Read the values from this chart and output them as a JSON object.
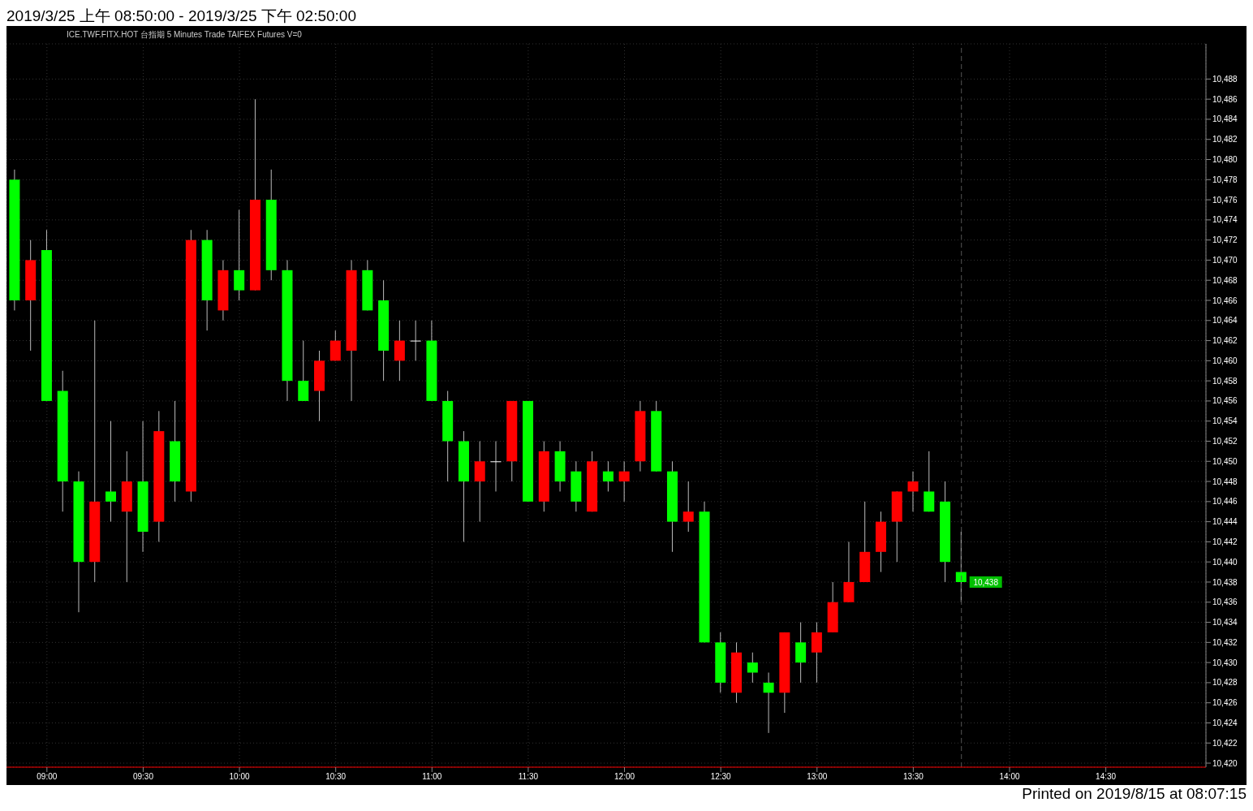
{
  "chart_data": {
    "type": "candlestick",
    "title": "2019/3/25 上午 08:50:00 - 2019/3/25 下午 02:50:00",
    "subtitle": "ICE.TWF.FITX.HOT 台指期 5 Minutes Trade TAIFEX Futures V=0",
    "x": [
      8.8333,
      8.9167,
      9,
      9.0833,
      9.1667,
      9.25,
      9.3333,
      9.4167,
      9.5,
      9.5833,
      9.6667,
      9.75,
      9.8333,
      9.9167,
      10,
      10.0833,
      10.1667,
      10.25,
      10.3333,
      10.4167,
      10.5,
      10.5833,
      10.6667,
      10.75,
      10.8333,
      10.9167,
      11,
      11.0833,
      11.1667,
      11.25,
      11.3333,
      11.4167,
      11.5,
      11.5833,
      11.6667,
      11.75,
      11.8333,
      11.9167,
      12,
      12.0833,
      12.1667,
      12.25,
      12.3333,
      12.4167,
      12.5,
      12.5833,
      12.6667,
      12.75,
      12.8333,
      12.9167,
      13,
      13.0833,
      13.1667,
      13.25,
      13.3333,
      13.4167,
      13.5,
      13.5833,
      13.6667,
      13.75
    ],
    "ohlc": [
      [
        10478,
        10479,
        10465,
        10466
      ],
      [
        10466,
        10472,
        10461,
        10470
      ],
      [
        10471,
        10473,
        10456,
        10456
      ],
      [
        10457,
        10459,
        10445,
        10448
      ],
      [
        10448,
        10449,
        10435,
        10440
      ],
      [
        10440,
        10464,
        10438,
        10446
      ],
      [
        10447,
        10454,
        10444,
        10446
      ],
      [
        10445,
        10451,
        10438,
        10448
      ],
      [
        10448,
        10454,
        10441,
        10443
      ],
      [
        10444,
        10455,
        10442,
        10453
      ],
      [
        10452,
        10456,
        10446,
        10448
      ],
      [
        10447,
        10473,
        10446,
        10472
      ],
      [
        10472,
        10473,
        10463,
        10466
      ],
      [
        10465,
        10470,
        10464,
        10469
      ],
      [
        10469,
        10475,
        10466,
        10467
      ],
      [
        10467,
        10486,
        10467,
        10476
      ],
      [
        10476,
        10479,
        10468,
        10469
      ],
      [
        10469,
        10470,
        10456,
        10458
      ],
      [
        10458,
        10462,
        10456,
        10456
      ],
      [
        10457,
        10461,
        10454,
        10460
      ],
      [
        10460,
        10463,
        10460,
        10462
      ],
      [
        10461,
        10470,
        10456,
        10469
      ],
      [
        10469,
        10470,
        10465,
        10465
      ],
      [
        10466,
        10468,
        10458,
        10461
      ],
      [
        10460,
        10464,
        10458,
        10462
      ],
      [
        10462,
        10464,
        10460,
        10462
      ],
      [
        10462,
        10464,
        10456,
        10456
      ],
      [
        10456,
        10457,
        10448,
        10452
      ],
      [
        10452,
        10453,
        10442,
        10448
      ],
      [
        10448,
        10452,
        10444,
        10450
      ],
      [
        10450,
        10452,
        10447,
        10450
      ],
      [
        10450,
        10456,
        10448,
        10456
      ],
      [
        10456,
        10456,
        10446,
        10446
      ],
      [
        10446,
        10452,
        10445,
        10451
      ],
      [
        10451,
        10452,
        10447,
        10448
      ],
      [
        10449,
        10450,
        10445,
        10446
      ],
      [
        10445,
        10451,
        10445,
        10450
      ],
      [
        10449,
        10450,
        10447,
        10448
      ],
      [
        10448,
        10450,
        10446,
        10449
      ],
      [
        10450,
        10456,
        10449,
        10455
      ],
      [
        10455,
        10456,
        10449,
        10449
      ],
      [
        10449,
        10450,
        10441,
        10444
      ],
      [
        10444,
        10448,
        10443,
        10445
      ],
      [
        10445,
        10446,
        10432,
        10432
      ],
      [
        10432,
        10433,
        10427,
        10428
      ],
      [
        10427,
        10432,
        10426,
        10431
      ],
      [
        10430,
        10431,
        10428,
        10429
      ],
      [
        10428,
        10429,
        10423,
        10427
      ],
      [
        10427,
        10433,
        10425,
        10433
      ],
      [
        10432,
        10434,
        10428,
        10430
      ],
      [
        10431,
        10434,
        10428,
        10433
      ],
      [
        10433,
        10438,
        10433,
        10436
      ],
      [
        10436,
        10442,
        10436,
        10438
      ],
      [
        10438,
        10446,
        10438,
        10441
      ],
      [
        10441,
        10445,
        10439,
        10444
      ],
      [
        10444,
        10447,
        10440,
        10447
      ],
      [
        10447,
        10449,
        10445,
        10448
      ],
      [
        10447,
        10451,
        10445,
        10445
      ],
      [
        10446,
        10448,
        10438,
        10440
      ],
      [
        10439,
        10443,
        10436,
        10438
      ]
    ],
    "colors": [
      "#00ff00",
      "#ff0000",
      "#00ff00",
      "#00ff00",
      "#00ff00",
      "#ff0000",
      "#00ff00",
      "#ff0000",
      "#00ff00",
      "#ff0000",
      "#00ff00",
      "#ff0000",
      "#00ff00",
      "#ff0000",
      "#00ff00",
      "#ff0000",
      "#00ff00",
      "#00ff00",
      "#00ff00",
      "#ff0000",
      "#ff0000",
      "#ff0000",
      "#00ff00",
      "#00ff00",
      "#ff0000",
      "#ffffff",
      "#00ff00",
      "#00ff00",
      "#00ff00",
      "#ff0000",
      "#ffffff",
      "#ff0000",
      "#00ff00",
      "#ff0000",
      "#00ff00",
      "#00ff00",
      "#ff0000",
      "#00ff00",
      "#ff0000",
      "#ff0000",
      "#00ff00",
      "#00ff00",
      "#ff0000",
      "#00ff00",
      "#00ff00",
      "#ff0000",
      "#00ff00",
      "#00ff00",
      "#ff0000",
      "#00ff00",
      "#ff0000",
      "#ff0000",
      "#ff0000",
      "#ff0000",
      "#ff0000",
      "#ff0000",
      "#ff0000",
      "#00ff00",
      "#00ff00",
      "#00ff00"
    ],
    "xlim": [
      8.79,
      15.02
    ],
    "xticks": [
      {
        "value": 9,
        "label": "09:00"
      },
      {
        "value": 9.5,
        "label": "09:30"
      },
      {
        "value": 10,
        "label": "10:00"
      },
      {
        "value": 10.5,
        "label": "10:30"
      },
      {
        "value": 11,
        "label": "11:00"
      },
      {
        "value": 11.5,
        "label": "11:30"
      },
      {
        "value": 12,
        "label": "12:00"
      },
      {
        "value": 12.5,
        "label": "12:30"
      },
      {
        "value": 13,
        "label": "13:00"
      },
      {
        "value": 13.5,
        "label": "13:30"
      },
      {
        "value": 14,
        "label": "14:00"
      },
      {
        "value": 14.5,
        "label": "14:30"
      }
    ],
    "ylim": [
      10419.6,
      10491.5
    ],
    "yticks": [
      {
        "value": 10420,
        "label": "10,420"
      },
      {
        "value": 10422,
        "label": "10,422"
      },
      {
        "value": 10424,
        "label": "10,424"
      },
      {
        "value": 10426,
        "label": "10,426"
      },
      {
        "value": 10428,
        "label": "10,428"
      },
      {
        "value": 10430,
        "label": "10,430"
      },
      {
        "value": 10432,
        "label": "10,432"
      },
      {
        "value": 10434,
        "label": "10,434"
      },
      {
        "value": 10436,
        "label": "10,436"
      },
      {
        "value": 10438,
        "label": "10,438"
      },
      {
        "value": 10440,
        "label": "10,440"
      },
      {
        "value": 10442,
        "label": "10,442"
      },
      {
        "value": 10444,
        "label": "10,444"
      },
      {
        "value": 10446,
        "label": "10,446"
      },
      {
        "value": 10448,
        "label": "10,448"
      },
      {
        "value": 10450,
        "label": "10,450"
      },
      {
        "value": 10452,
        "label": "10,452"
      },
      {
        "value": 10454,
        "label": "10,454"
      },
      {
        "value": 10456,
        "label": "10,456"
      },
      {
        "value": 10458,
        "label": "10,458"
      },
      {
        "value": 10460,
        "label": "10,460"
      },
      {
        "value": 10462,
        "label": "10,462"
      },
      {
        "value": 10464,
        "label": "10,464"
      },
      {
        "value": 10466,
        "label": "10,466"
      },
      {
        "value": 10468,
        "label": "10,468"
      },
      {
        "value": 10470,
        "label": "10,470"
      },
      {
        "value": 10472,
        "label": "10,472"
      },
      {
        "value": 10474,
        "label": "10,474"
      },
      {
        "value": 10476,
        "label": "10,476"
      },
      {
        "value": 10478,
        "label": "10,478"
      },
      {
        "value": 10480,
        "label": "10,480"
      },
      {
        "value": 10482,
        "label": "10,482"
      },
      {
        "value": 10484,
        "label": "10,484"
      },
      {
        "value": 10486,
        "label": "10,486"
      },
      {
        "value": 10488,
        "label": "10,488"
      }
    ],
    "grid": true,
    "ref_lines": [
      {
        "axis": "x",
        "value": 13.75,
        "color": "#555555",
        "line_style": "dashed"
      }
    ],
    "annotations": [
      {
        "text": "10,438",
        "x": 13.75,
        "y": 10438
      },
      "Printed on 2019/8/15 at 08:07:15"
    ]
  }
}
